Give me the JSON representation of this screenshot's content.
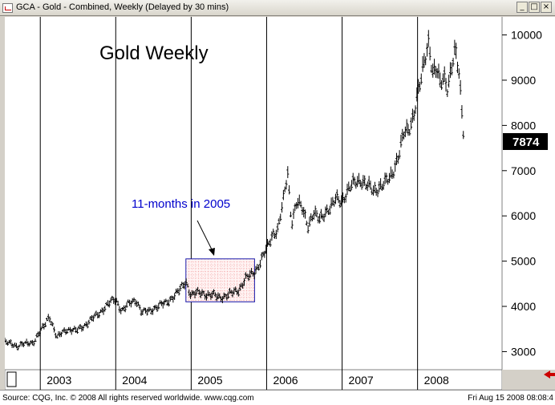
{
  "window": {
    "title": "GCA - Gold - Combined, Weekly (Delayed by 30 mins)",
    "buttons": [
      "_",
      "□",
      "×"
    ]
  },
  "footer": {
    "source": "Source: CQG, Inc. © 2008 All rights reserved worldwide. www.cqg.com",
    "timestamp": "Fri Aug 15 2008 08:08:4"
  },
  "colors": {
    "window_bg": "#d4d0c8",
    "plot_bg": "#ffffff",
    "bars": "#000000",
    "annotation_text": "#0000cc",
    "box_border": "#1a1aaa",
    "box_grid": "#e07070",
    "arrow": "#cc0000"
  },
  "chart_data": {
    "type": "ohlc",
    "title": "Gold Weekly",
    "annotation": "11-months in 2005",
    "last_price": "7874",
    "x_labels": [
      "2003",
      "2004",
      "2005",
      "2006",
      "2007",
      "2008"
    ],
    "y_ticks": [
      "10000",
      "9000",
      "8000",
      "7000",
      "6000",
      "5000",
      "4000",
      "3000"
    ],
    "ylim": [
      2600,
      10400
    ],
    "xlim": [
      2002.53,
      2009.12
    ],
    "highlight_box": {
      "x_from": 2004.93,
      "x_to": 2005.84,
      "y_from": 4100,
      "y_to": 5050
    },
    "series_points": [
      [
        2002.53,
        3200
      ],
      [
        2002.7,
        3130
      ],
      [
        2002.9,
        3200
      ],
      [
        2003.05,
        3550
      ],
      [
        2003.12,
        3800
      ],
      [
        2003.22,
        3300
      ],
      [
        2003.35,
        3500
      ],
      [
        2003.48,
        3450
      ],
      [
        2003.6,
        3600
      ],
      [
        2003.75,
        3800
      ],
      [
        2003.9,
        4050
      ],
      [
        2004.0,
        4150
      ],
      [
        2004.08,
        3900
      ],
      [
        2004.18,
        4050
      ],
      [
        2004.27,
        4150
      ],
      [
        2004.35,
        3850
      ],
      [
        2004.45,
        3900
      ],
      [
        2004.55,
        4000
      ],
      [
        2004.65,
        4050
      ],
      [
        2004.75,
        4200
      ],
      [
        2004.85,
        4350
      ],
      [
        2004.93,
        4550
      ],
      [
        2005.0,
        4250
      ],
      [
        2005.12,
        4300
      ],
      [
        2005.25,
        4250
      ],
      [
        2005.38,
        4200
      ],
      [
        2005.5,
        4250
      ],
      [
        2005.62,
        4350
      ],
      [
        2005.72,
        4600
      ],
      [
        2005.84,
        4750
      ],
      [
        2005.92,
        5000
      ],
      [
        2006.0,
        5250
      ],
      [
        2006.08,
        5600
      ],
      [
        2006.15,
        5700
      ],
      [
        2006.22,
        6300
      ],
      [
        2006.28,
        6950
      ],
      [
        2006.33,
        5850
      ],
      [
        2006.4,
        6300
      ],
      [
        2006.47,
        6150
      ],
      [
        2006.55,
        5800
      ],
      [
        2006.62,
        6050
      ],
      [
        2006.7,
        5900
      ],
      [
        2006.78,
        6100
      ],
      [
        2006.86,
        6200
      ],
      [
        2006.92,
        6350
      ],
      [
        2007.0,
        6350
      ],
      [
        2007.1,
        6600
      ],
      [
        2007.18,
        6750
      ],
      [
        2007.25,
        6800
      ],
      [
        2007.33,
        6650
      ],
      [
        2007.42,
        6550
      ],
      [
        2007.5,
        6650
      ],
      [
        2007.57,
        6700
      ],
      [
        2007.64,
        6850
      ],
      [
        2007.7,
        7100
      ],
      [
        2007.76,
        7400
      ],
      [
        2007.82,
        7800
      ],
      [
        2007.88,
        7900
      ],
      [
        2007.94,
        8200
      ],
      [
        2008.0,
        8650
      ],
      [
        2008.05,
        9000
      ],
      [
        2008.1,
        9500
      ],
      [
        2008.15,
        9900
      ],
      [
        2008.2,
        9150
      ],
      [
        2008.25,
        9200
      ],
      [
        2008.3,
        8900
      ],
      [
        2008.35,
        9100
      ],
      [
        2008.4,
        8850
      ],
      [
        2008.45,
        9250
      ],
      [
        2008.5,
        9600
      ],
      [
        2008.55,
        9150
      ],
      [
        2008.58,
        8500
      ],
      [
        2008.61,
        7874
      ]
    ]
  }
}
